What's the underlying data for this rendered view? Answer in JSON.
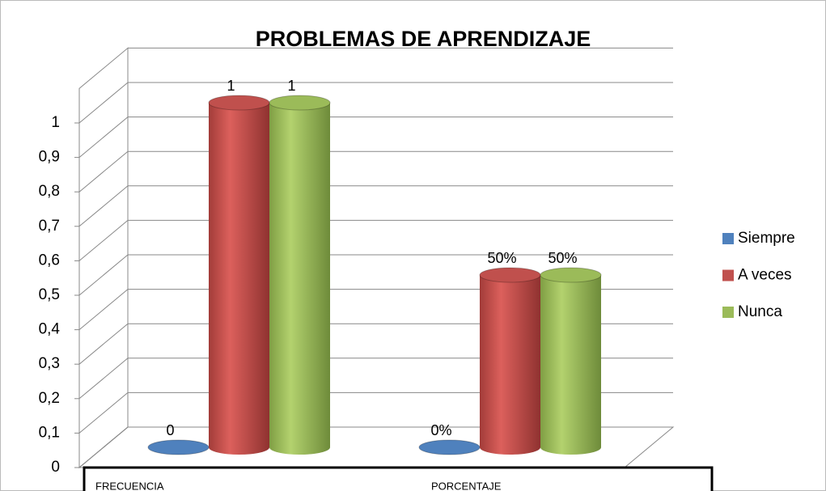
{
  "chart_data": {
    "type": "bar3d",
    "title": "PROBLEMAS DE APRENDIZAJE",
    "categories": [
      "FRECUENCIA",
      "PORCENTAJE"
    ],
    "series": [
      {
        "name": "Siempre",
        "color": "#4f81bd",
        "values": [
          0,
          0
        ],
        "value_labels": [
          "0",
          "0%"
        ]
      },
      {
        "name": "A veces",
        "color": "#c0504d",
        "values": [
          1,
          0.5
        ],
        "value_labels": [
          "1",
          "50%"
        ]
      },
      {
        "name": "Nunca",
        "color": "#9bbb59",
        "values": [
          1,
          0.5
        ],
        "value_labels": [
          "1",
          "50%"
        ]
      }
    ],
    "ylim": [
      0,
      1.1
    ],
    "yticks": [
      0,
      {
        "value": 0.1,
        "label": "0,1"
      },
      {
        "value": 0.2,
        "label": "0,2"
      },
      {
        "value": 0.3,
        "label": "0,3"
      },
      {
        "value": 0.4,
        "label": "0,4"
      },
      {
        "value": 0.5,
        "label": "0,5"
      },
      {
        "value": 0.6,
        "label": "0,6"
      },
      {
        "value": 0.7,
        "label": "0,7"
      },
      {
        "value": 0.8,
        "label": "0,8"
      },
      {
        "value": 0.9,
        "label": "0,9"
      },
      1
    ],
    "grid": true,
    "legend": "right"
  }
}
